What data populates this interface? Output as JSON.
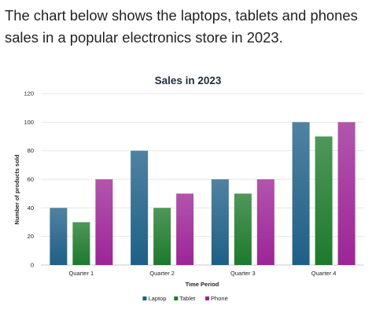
{
  "intro_text": "The chart below shows the laptops, tablets and phones sales in a popular electronics store in 2023.",
  "chart_data": {
    "type": "bar",
    "title": "Sales in 2023",
    "xlabel": "Time Period",
    "ylabel": "Number of products sold",
    "categories": [
      "Quarter 1",
      "Quarter 2",
      "Quarter 3",
      "Quarter 4"
    ],
    "series": [
      {
        "name": "Laptop",
        "values": [
          40,
          80,
          60,
          100
        ],
        "color": "#1f5f86"
      },
      {
        "name": "Tablet",
        "values": [
          30,
          40,
          50,
          90
        ],
        "color": "#1d7a2c"
      },
      {
        "name": "Phone",
        "values": [
          60,
          50,
          60,
          100
        ],
        "color": "#9c2596"
      }
    ],
    "ylim": [
      0,
      120
    ],
    "yticks": [
      0,
      20,
      40,
      60,
      80,
      100,
      120
    ],
    "grid": true,
    "legend_position": "bottom"
  }
}
